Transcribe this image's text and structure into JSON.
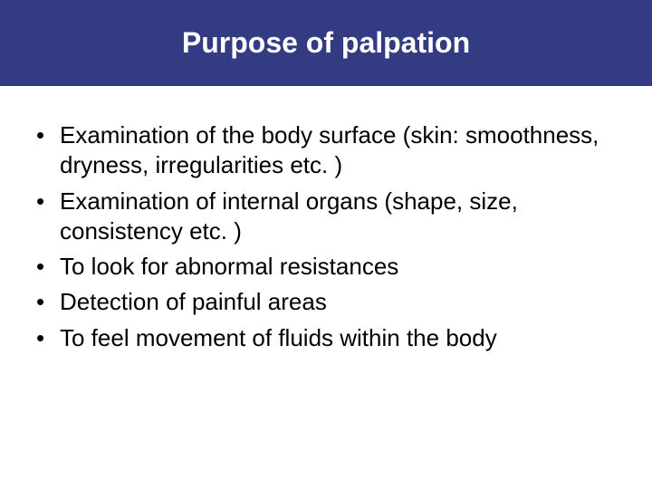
{
  "slide": {
    "title": "Purpose of palpation",
    "title_bar_color": "#333b83",
    "title_text_color": "#ffffff",
    "title_fontsize": 32,
    "background_color": "#ffffff",
    "body_fontsize": 26,
    "body_text_color": "#000000",
    "bullets": [
      "Examination of the body surface (skin: smoothness, dryness, irregularities etc. )",
      "Examination of internal organs (shape, size, consistency etc. )",
      "To look for abnormal resistances",
      "Detection of painful areas",
      "To feel movement of fluids within the body"
    ]
  }
}
